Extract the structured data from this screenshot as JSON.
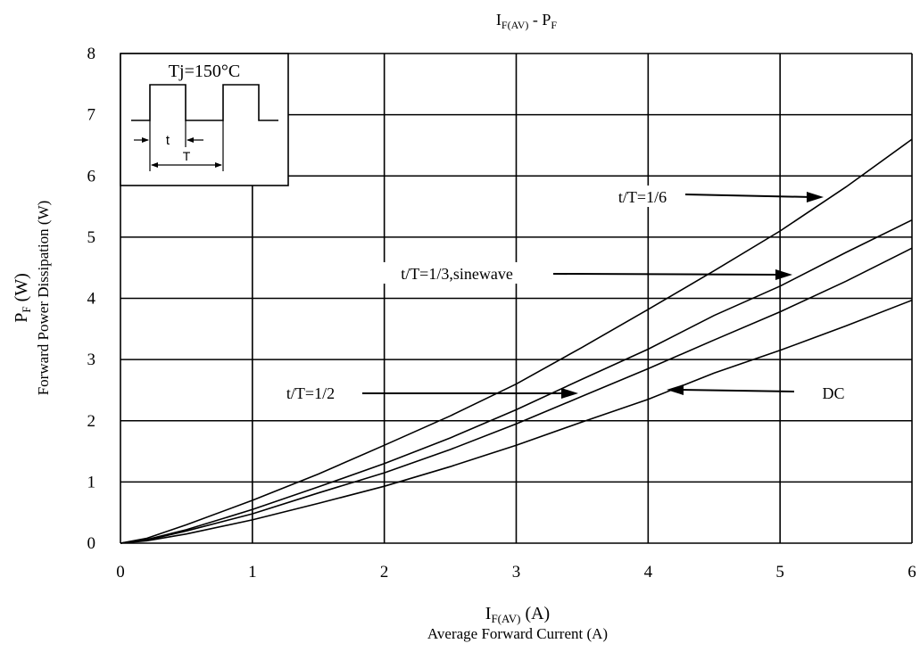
{
  "chart_data": {
    "type": "line",
    "title": "I",
    "title_sub": "F(AV)",
    "title_rest": " - P",
    "title_sub2": "F",
    "xlabel_main": "I",
    "xlabel_sub": "F(AV)",
    "xlabel_rest": " (A)",
    "xlabel_desc": "Average Forward Current (A)",
    "ylabel_main": "P",
    "ylabel_sub": "F",
    "ylabel_rest": " (W)",
    "ylabel_desc": "Forward Power Dissipation (W)",
    "xlim": [
      0,
      6
    ],
    "ylim": [
      0,
      8
    ],
    "xticks": [
      0,
      1,
      2,
      3,
      4,
      5,
      6
    ],
    "yticks": [
      0,
      1,
      2,
      3,
      4,
      5,
      6,
      7,
      8
    ],
    "grid": true,
    "inset": {
      "temp_label": "Tj=150°C",
      "t_label": "t",
      "T_label": "T"
    },
    "series": [
      {
        "name": "t/T=1/6",
        "x": [
          0,
          0.2,
          0.5,
          1,
          1.5,
          2,
          2.5,
          3,
          3.5,
          4,
          4.5,
          5,
          5.5,
          6
        ],
        "y": [
          0,
          0.08,
          0.3,
          0.7,
          1.13,
          1.6,
          2.08,
          2.6,
          3.2,
          3.82,
          4.45,
          5.1,
          5.82,
          6.6
        ]
      },
      {
        "name": "t/T=1/3,sinewave",
        "x": [
          0,
          0.2,
          0.5,
          1,
          1.5,
          2,
          2.5,
          3,
          3.5,
          4,
          4.5,
          5,
          5.5,
          6
        ],
        "y": [
          0,
          0.06,
          0.22,
          0.55,
          0.92,
          1.3,
          1.72,
          2.18,
          2.68,
          3.17,
          3.72,
          4.2,
          4.75,
          5.28
        ]
      },
      {
        "name": "t/T=1/2",
        "x": [
          0,
          0.2,
          0.5,
          1,
          1.5,
          2,
          2.5,
          3,
          3.5,
          4,
          4.5,
          5,
          5.5,
          6
        ],
        "y": [
          0,
          0.05,
          0.2,
          0.48,
          0.82,
          1.15,
          1.53,
          1.95,
          2.4,
          2.85,
          3.32,
          3.78,
          4.28,
          4.82
        ]
      },
      {
        "name": "DC",
        "x": [
          0,
          0.2,
          0.5,
          1,
          1.5,
          2,
          2.5,
          3,
          3.5,
          4,
          4.5,
          5,
          5.5,
          6
        ],
        "y": [
          0,
          0.04,
          0.15,
          0.38,
          0.65,
          0.93,
          1.25,
          1.6,
          1.98,
          2.35,
          2.78,
          3.15,
          3.55,
          3.97
        ]
      }
    ],
    "annotations": [
      {
        "label": "t/T=1/6",
        "target": "t/T=1/6"
      },
      {
        "label": "t/T=1/3,sinewave",
        "target": "t/T=1/3,sinewave"
      },
      {
        "label": "t/T=1/2",
        "target": "t/T=1/2"
      },
      {
        "label": "DC",
        "target": "DC"
      }
    ]
  }
}
